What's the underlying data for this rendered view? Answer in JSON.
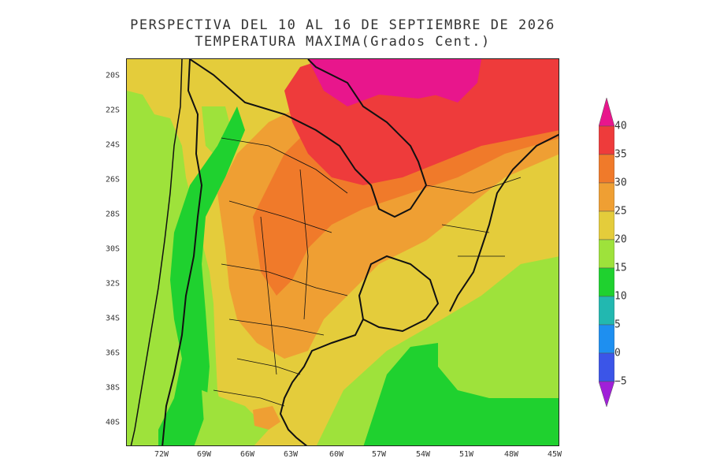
{
  "title": {
    "line1": "PERSPECTIVA DEL 10 AL 16 DE SEPTIEMBRE DE 2026",
    "line2": "TEMPERATURA MAXIMA(Grados Cent.)"
  },
  "map": {
    "lat_labels": [
      "20S",
      "22S",
      "24S",
      "26S",
      "28S",
      "30S",
      "32S",
      "34S",
      "36S",
      "38S",
      "40S"
    ],
    "lon_labels": [
      "72W",
      "69W",
      "66W",
      "63W",
      "60W",
      "57W",
      "54W",
      "51W",
      "48W",
      "45W"
    ],
    "lat_range": [
      -41.5,
      -19
    ],
    "lon_range": [
      -74.5,
      -45
    ]
  },
  "legend": {
    "labels": [
      "40",
      "35",
      "30",
      "25",
      "20",
      "15",
      "10",
      "5",
      "0",
      "−5"
    ],
    "colors": {
      "above_40": "#e8168c",
      "35_40": "#ee3b3b",
      "30_35": "#f07a2a",
      "25_30": "#ef9f33",
      "20_25": "#e4cc3b",
      "15_20": "#9ee23b",
      "10_15": "#1fd12f",
      "5_10": "#22b8b0",
      "0_5": "#1e8ff0",
      "m5_0": "#3b55e8",
      "below_m5": "#a020d8"
    }
  }
}
